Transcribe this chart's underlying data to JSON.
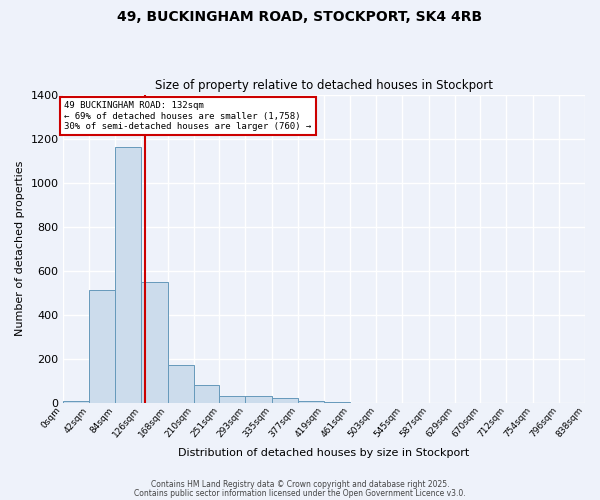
{
  "title": "49, BUCKINGHAM ROAD, STOCKPORT, SK4 4RB",
  "subtitle": "Size of property relative to detached houses in Stockport",
  "xlabel": "Distribution of detached houses by size in Stockport",
  "ylabel": "Number of detached properties",
  "bar_color": "#ccdcec",
  "bar_edge_color": "#6699bb",
  "background_color": "#eef2fa",
  "grid_color": "#ffffff",
  "bin_labels": [
    "0sqm",
    "42sqm",
    "84sqm",
    "126sqm",
    "168sqm",
    "210sqm",
    "251sqm",
    "293sqm",
    "335sqm",
    "377sqm",
    "419sqm",
    "461sqm",
    "503sqm",
    "545sqm",
    "587sqm",
    "629sqm",
    "670sqm",
    "712sqm",
    "754sqm",
    "796sqm",
    "838sqm"
  ],
  "bin_edges": [
    0,
    42,
    84,
    126,
    168,
    210,
    251,
    293,
    335,
    377,
    419,
    461,
    503,
    545,
    587,
    629,
    670,
    712,
    754,
    796,
    838
  ],
  "bar_heights": [
    10,
    510,
    1160,
    550,
    170,
    80,
    30,
    30,
    20,
    10,
    5,
    0,
    0,
    0,
    0,
    0,
    0,
    0,
    0,
    0
  ],
  "property_size": 132,
  "red_line_color": "#cc0000",
  "annotation_line1": "49 BUCKINGHAM ROAD: 132sqm",
  "annotation_line2": "← 69% of detached houses are smaller (1,758)",
  "annotation_line3": "30% of semi-detached houses are larger (760) →",
  "annotation_box_color": "#ffffff",
  "annotation_box_edge_color": "#cc0000",
  "ylim": [
    0,
    1400
  ],
  "yticks": [
    0,
    200,
    400,
    600,
    800,
    1000,
    1200,
    1400
  ],
  "footer_line1": "Contains HM Land Registry data © Crown copyright and database right 2025.",
  "footer_line2": "Contains public sector information licensed under the Open Government Licence v3.0."
}
